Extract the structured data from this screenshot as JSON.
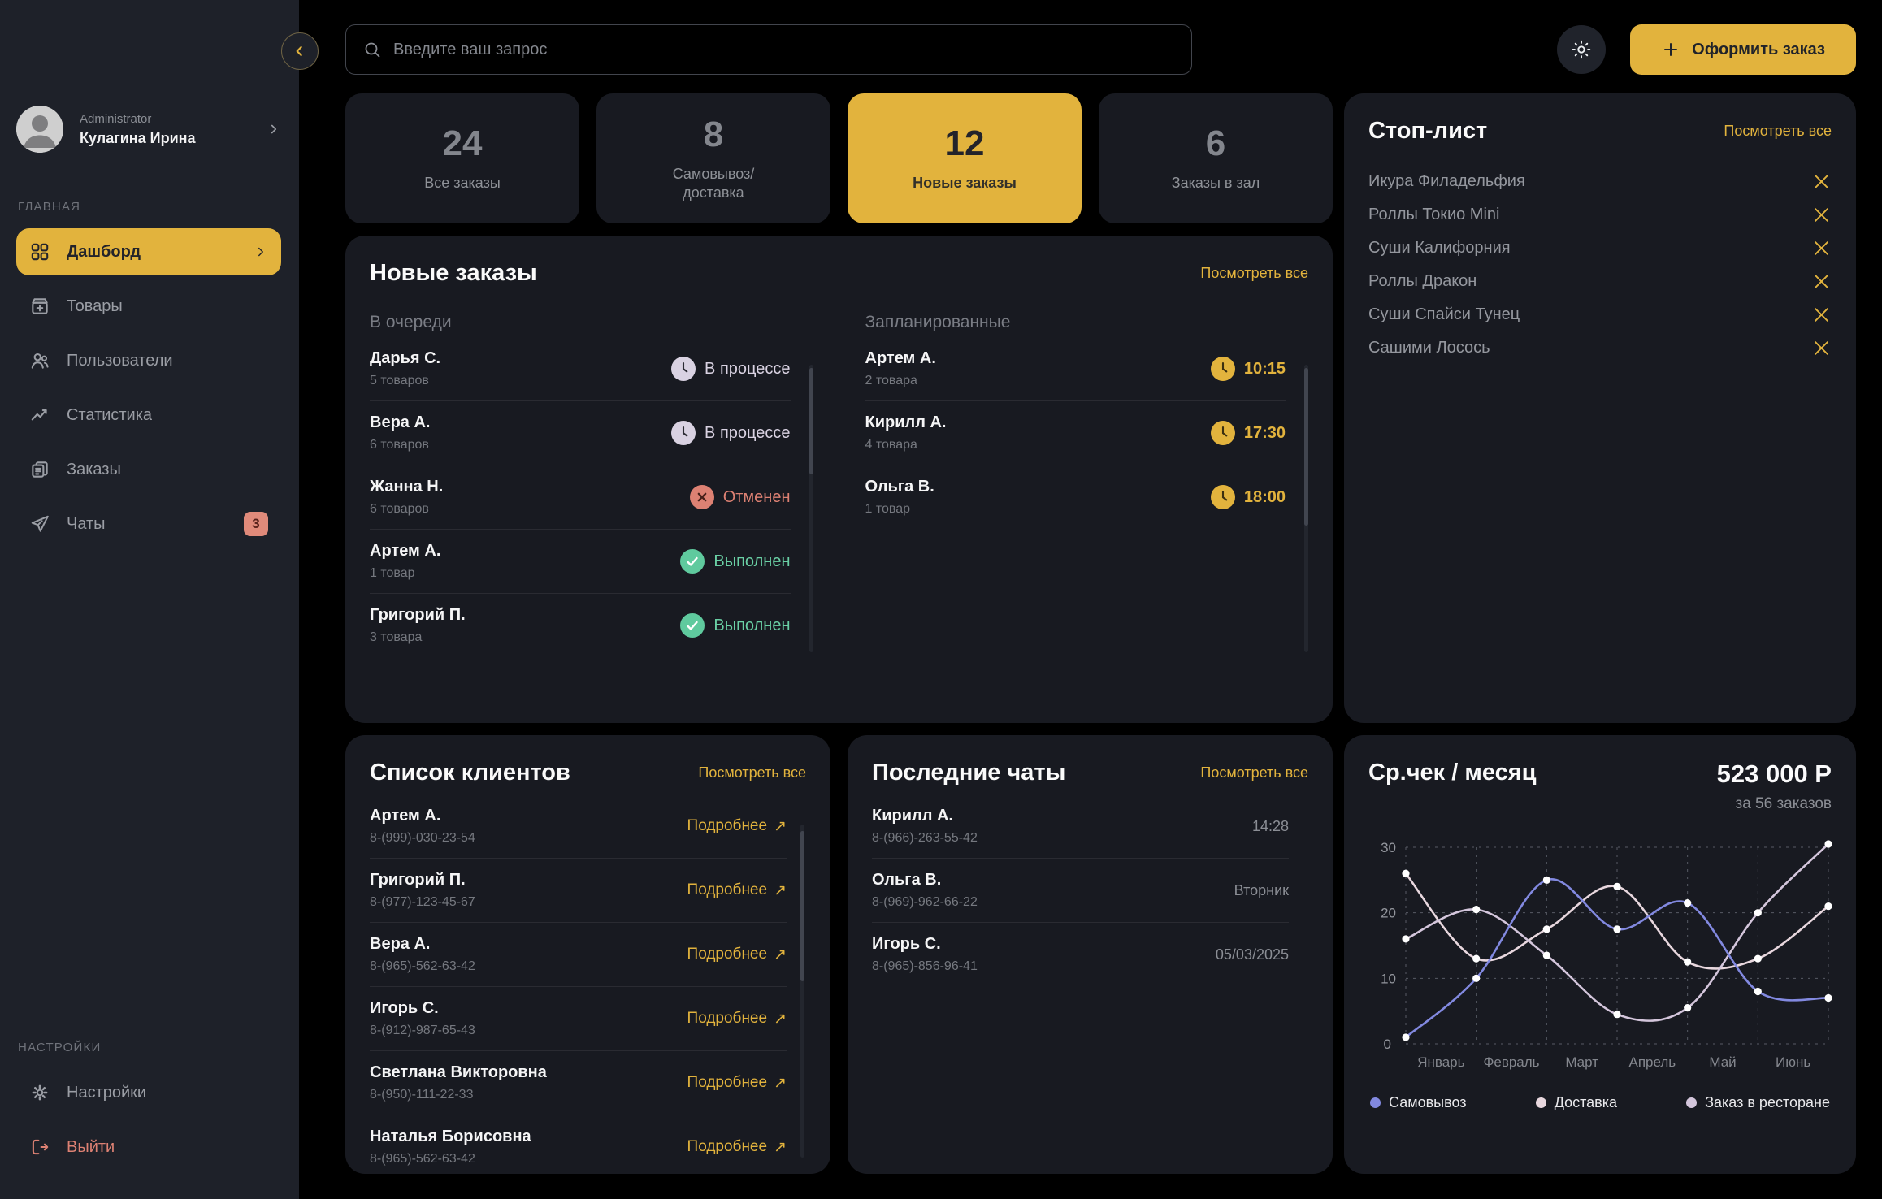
{
  "sidebar": {
    "user": {
      "role": "Administrator",
      "name": "Кулагина Ирина"
    },
    "sections": [
      {
        "label": "ГЛАВНАЯ",
        "items": [
          {
            "id": "dashboard",
            "label": "Дашборд",
            "icon": "dashboard",
            "active": true
          },
          {
            "id": "products",
            "label": "Товары",
            "icon": "products"
          },
          {
            "id": "users",
            "label": "Пользователи",
            "icon": "users"
          },
          {
            "id": "statistics",
            "label": "Статистика",
            "icon": "stats"
          },
          {
            "id": "orders",
            "label": "Заказы",
            "icon": "orders"
          },
          {
            "id": "chats",
            "label": "Чаты",
            "icon": "chats",
            "badge": "3"
          }
        ]
      },
      {
        "label": "НАСТРОЙКИ",
        "items": [
          {
            "id": "settings",
            "label": "Настройки",
            "icon": "settings"
          },
          {
            "id": "logout",
            "label": "Выйти",
            "icon": "logout",
            "danger": true
          }
        ]
      }
    ]
  },
  "topbar": {
    "search_placeholder": "Введите ваш запрос",
    "new_order_label": "Оформить заказ"
  },
  "stats": [
    {
      "value": "24",
      "label": "Все заказы",
      "active": false
    },
    {
      "value": "8",
      "label": "Самовывоз/\nдоставка",
      "active": false
    },
    {
      "value": "12",
      "label": "Новые заказы",
      "active": true
    },
    {
      "value": "6",
      "label": "Заказы в зал",
      "active": false
    }
  ],
  "view_all_label": "Посмотреть все",
  "new_orders": {
    "title": "Новые заказы",
    "queue": {
      "title": "В очереди",
      "items": [
        {
          "name": "Дарья С.",
          "qty": "5 товаров",
          "status": "В процессе",
          "type": "progress"
        },
        {
          "name": "Вера А.",
          "qty": "6 товаров",
          "status": "В процессе",
          "type": "progress"
        },
        {
          "name": "Жанна Н.",
          "qty": "6 товаров",
          "status": "Отменен",
          "type": "cancelled"
        },
        {
          "name": "Артем А.",
          "qty": "1 товар",
          "status": "Выполнен",
          "type": "done"
        },
        {
          "name": "Григорий П.",
          "qty": "3 товара",
          "status": "Выполнен",
          "type": "done"
        }
      ]
    },
    "scheduled": {
      "title": "Запланированные",
      "items": [
        {
          "name": "Артем А.",
          "qty": "2 товара",
          "time": "10:15"
        },
        {
          "name": "Кирилл А.",
          "qty": "4 товара",
          "time": "17:30"
        },
        {
          "name": "Ольга В.",
          "qty": "1 товар",
          "time": "18:00"
        }
      ]
    }
  },
  "stop_list": {
    "title": "Стоп-лист",
    "items": [
      "Икура Филадельфия",
      "Роллы Токио Mini",
      "Суши Калифорния",
      "Роллы Дракон",
      "Суши Спайси Тунец",
      "Сашими Лосось"
    ]
  },
  "clients": {
    "title": "Список клиентов",
    "details_label": "Подробнее",
    "items": [
      {
        "name": "Артем А.",
        "phone": "8-(999)-030-23-54"
      },
      {
        "name": "Григорий П.",
        "phone": "8-(977)-123-45-67"
      },
      {
        "name": "Вера А.",
        "phone": "8-(965)-562-63-42"
      },
      {
        "name": "Игорь С.",
        "phone": "8-(912)-987-65-43"
      },
      {
        "name": "Светлана Викторовна",
        "phone": "8-(950)-111-22-33"
      },
      {
        "name": "Наталья Борисовна",
        "phone": "8-(965)-562-63-42"
      }
    ]
  },
  "chats": {
    "title": "Последние чаты",
    "items": [
      {
        "name": "Кирилл А.",
        "phone": "8-(966)-263-55-42",
        "meta": "14:28"
      },
      {
        "name": "Ольга В.",
        "phone": "8-(969)-962-66-22",
        "meta": "Вторник"
      },
      {
        "name": "Игорь С.",
        "phone": "8-(965)-856-96-41",
        "meta": "05/03/2025"
      }
    ]
  },
  "chart_data": {
    "type": "line",
    "title": "Ср.чек / месяц",
    "value": "523 000 Р",
    "subtitle": "за 56 заказов",
    "x_tick_labels": [
      "Январь",
      "Февраль",
      "Март",
      "Апрель",
      "Май",
      "Июнь"
    ],
    "y_ticks": [
      0,
      10,
      20,
      30
    ],
    "ylim": [
      0,
      31
    ],
    "grid": "dashed",
    "legend_position": "bottom",
    "series": [
      {
        "name": "Самовывоз",
        "color": "#8289e0",
        "values": [
          1,
          10,
          25,
          17.5,
          21.5,
          8,
          7
        ]
      },
      {
        "name": "Доставка",
        "color": "#e8d7de",
        "values": [
          26,
          13,
          17.5,
          24,
          12.5,
          13,
          21
        ]
      },
      {
        "name": "Заказ в ресторане",
        "color": "#d4c6dc",
        "values": [
          16,
          20.5,
          13.5,
          4.5,
          5.5,
          20,
          30.5
        ]
      }
    ]
  },
  "colors": {
    "accent": "#e2b33d",
    "danger": "#dd8173",
    "success": "#5fca9e",
    "progress": "#d9d2e2"
  }
}
